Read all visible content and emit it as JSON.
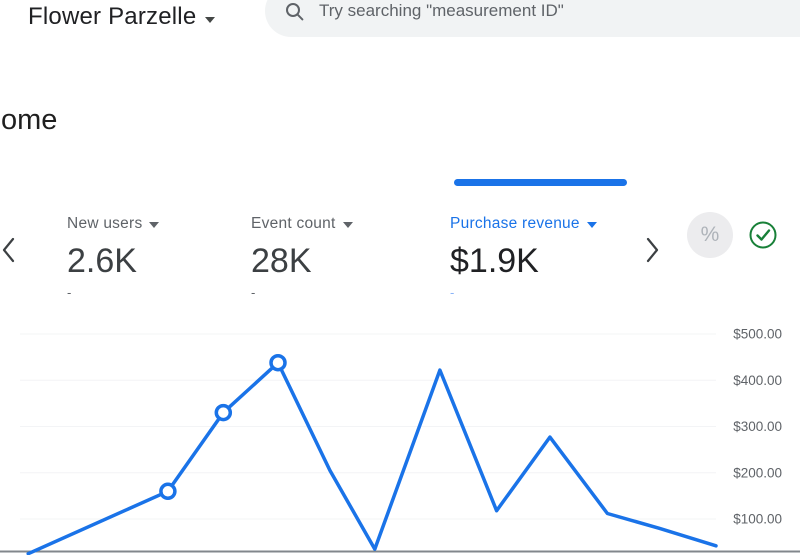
{
  "header": {
    "property_name": "Flower Parzelle",
    "search": {
      "placeholder": "Try searching \"measurement ID\""
    }
  },
  "page": {
    "title": "Home"
  },
  "metric_carousel": {
    "items": [
      {
        "label": "New users",
        "value": "2.6K",
        "change": "-",
        "selected": false
      },
      {
        "label": "Event count",
        "value": "28K",
        "change": "-",
        "selected": false
      },
      {
        "label": "Purchase revenue",
        "value": "$1.9K",
        "change": "-",
        "selected": true
      }
    ]
  },
  "icons": {
    "badge_glyph": "%"
  },
  "colors": {
    "accent_blue": "#1a73e8",
    "success_green": "#188038",
    "text_primary": "#202124",
    "text_secondary": "#5f6368",
    "search_bg": "#f1f3f4"
  },
  "chart_data": {
    "type": "line",
    "series": [
      {
        "name": "Purchase revenue",
        "color": "#1a73e8",
        "points": [
          {
            "x": 0.006,
            "value": 25,
            "marker": false
          },
          {
            "x": 0.208,
            "value": 160,
            "marker": true
          },
          {
            "x": 0.288,
            "value": 330,
            "marker": true
          },
          {
            "x": 0.367,
            "value": 438,
            "marker": true
          },
          {
            "x": 0.442,
            "value": 205,
            "marker": false
          },
          {
            "x": 0.507,
            "value": 35,
            "marker": false
          },
          {
            "x": 0.601,
            "value": 422,
            "marker": false
          },
          {
            "x": 0.683,
            "value": 118,
            "marker": false
          },
          {
            "x": 0.76,
            "value": 277,
            "marker": false
          },
          {
            "x": 0.843,
            "value": 112,
            "marker": false
          },
          {
            "x": 0.918,
            "value": 80,
            "marker": false
          },
          {
            "x": 1.0,
            "value": 42,
            "marker": false
          }
        ]
      }
    ],
    "y_ticks": [
      {
        "value": 500,
        "label": "$500.00"
      },
      {
        "value": 400,
        "label": "$400.00"
      },
      {
        "value": 300,
        "label": "$300.00"
      },
      {
        "value": 200,
        "label": "$200.00"
      },
      {
        "value": 100,
        "label": "$100.00"
      }
    ],
    "ylim": [
      0,
      500
    ],
    "legend": "hidden",
    "x_axis_labels": "cropped out of view",
    "grid": "minimal"
  }
}
